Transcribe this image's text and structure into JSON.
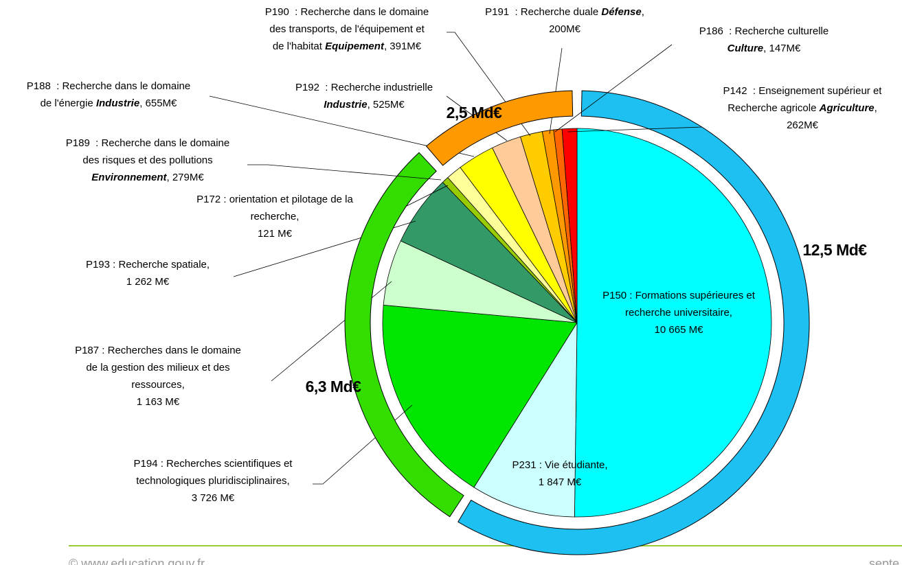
{
  "chart_data": {
    "type": "pie",
    "groups": [
      {
        "label": "12,5 Md€",
        "color": "#1ec0f2",
        "slices": [
          {
            "lines": [
              [
                "P150 : Formations supérieures et"
              ],
              [
                "recherche universitaire,"
              ]
            ],
            "value": 10665,
            "value_label": "10 665 M€",
            "value_inline": false,
            "color": "#00ffff"
          },
          {
            "lines": [
              [
                "P231 : Vie étudiante,"
              ]
            ],
            "value": 1847,
            "value_label": "1 847 M€",
            "value_inline": false,
            "color": "#ccffff"
          }
        ]
      },
      {
        "label": "6,3 Md€",
        "color": "#33dd00",
        "slices": [
          {
            "lines": [
              [
                "P194 : Recherches scientifiques et"
              ],
              [
                "technologiques pluridisciplinaires,"
              ]
            ],
            "value": 3726,
            "value_label": "3 726 M€",
            "value_inline": false,
            "color": "#00e600"
          },
          {
            "lines": [
              [
                "P187 : Recherches dans le domaine"
              ],
              [
                "de la gestion des milieux et des"
              ],
              [
                "ressources,"
              ]
            ],
            "value": 1163,
            "value_label": "1 163 M€",
            "value_inline": false,
            "color": "#ccffcc"
          },
          {
            "lines": [
              [
                "P193 : Recherche spatiale,"
              ]
            ],
            "value": 1262,
            "value_label": "1 262 M€",
            "value_inline": false,
            "color": "#339966"
          },
          {
            "lines": [
              [
                "P172 : orientation et pilotage de la"
              ],
              [
                "recherche,"
              ]
            ],
            "value": 121,
            "value_label": "121 M€",
            "value_inline": false,
            "color": "#99cc00"
          }
        ]
      },
      {
        "label": "2,5 Md€",
        "color": "#ff9900",
        "slices": [
          {
            "lines": [
              [
                "P189  : Recherche dans le domaine"
              ],
              [
                "des risques et des pollutions"
              ],
              [
                {
                  "em": "Environnement"
                },
                ", "
              ]
            ],
            "value": 279,
            "value_label": "279M€",
            "value_inline": true,
            "color": "#ffff99"
          },
          {
            "lines": [
              [
                "P188  : Recherche dans le domaine"
              ],
              [
                "de l'énergie ",
                {
                  "em": "Industrie"
                },
                ", "
              ]
            ],
            "value": 655,
            "value_label": "655M€",
            "value_inline": true,
            "color": "#ffff00"
          },
          {
            "lines": [
              [
                "P192  : Recherche industrielle"
              ],
              [
                {
                  "em": "Industrie"
                },
                ", "
              ]
            ],
            "value": 525,
            "value_label": "525M€",
            "value_inline": true,
            "color": "#ffcc99"
          },
          {
            "lines": [
              [
                "P190  : Recherche dans le domaine"
              ],
              [
                "des transports, de l'équipement et"
              ],
              [
                "de l'habitat ",
                {
                  "em": "Equipement"
                },
                ", "
              ]
            ],
            "value": 391,
            "value_label": "391M€",
            "value_inline": true,
            "color": "#ffcc00"
          },
          {
            "lines": [
              [
                "P191  : Recherche duale ",
                {
                  "em": "Défense"
                },
                ","
              ]
            ],
            "value": 200,
            "value_label": "200M€",
            "value_inline": false,
            "color": "#ff9900"
          },
          {
            "lines": [
              [
                "P186  : Recherche culturelle"
              ],
              [
                {
                  "em": "Culture"
                },
                ", "
              ]
            ],
            "value": 147,
            "value_label": "147M€",
            "value_inline": true,
            "color": "#ff6600"
          },
          {
            "lines": [
              [
                "P142  : Enseignement supérieur et"
              ],
              [
                "Recherche agricole ",
                {
                  "em": "Agriculture"
                },
                ","
              ]
            ],
            "value": 262,
            "value_label": "262M€",
            "value_inline": false,
            "color": "#ff0000"
          }
        ]
      }
    ]
  },
  "footer": {
    "left": "© www.education.gouv.fr",
    "right": "septe"
  }
}
